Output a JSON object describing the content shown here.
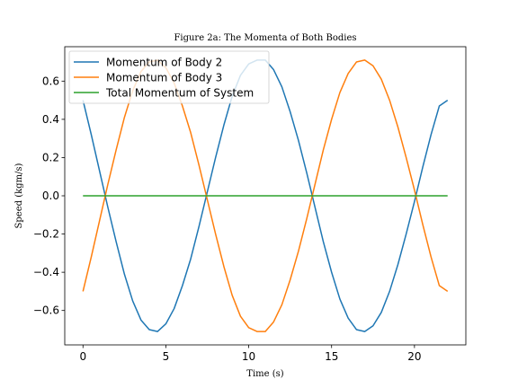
{
  "chart_data": {
    "type": "line",
    "title": "Figure 2a: The Momenta of Both Bodies",
    "xlabel": "Time (s)",
    "ylabel": "Speed (kgm/s)",
    "xlim": [
      -1.1,
      23.1
    ],
    "ylim": [
      -0.78,
      0.78
    ],
    "xticks": [
      0,
      5,
      10,
      15,
      20
    ],
    "yticks": [
      -0.6,
      -0.4,
      -0.2,
      0.0,
      0.2,
      0.4,
      0.6
    ],
    "ytick_labels": [
      "−0.6",
      "−0.4",
      "−0.2",
      "0.0",
      "0.2",
      "0.4",
      "0.6"
    ],
    "grid": false,
    "legend": "top-left",
    "x": [
      0,
      0.5,
      1,
      1.5,
      2,
      2.5,
      3,
      3.5,
      4,
      4.5,
      5,
      5.5,
      6,
      6.5,
      7,
      7.5,
      8,
      8.5,
      9,
      9.5,
      10,
      10.5,
      11,
      11.5,
      12,
      12.5,
      13,
      13.5,
      14,
      14.5,
      15,
      15.5,
      16,
      16.5,
      17,
      17.5,
      18,
      18.5,
      19,
      19.5,
      20,
      20.5,
      21,
      21.5,
      22
    ],
    "series": [
      {
        "name": "Momentum of Body 2",
        "color": "#1f77b4",
        "values": [
          0.5,
          0.32,
          0.13,
          -0.06,
          -0.24,
          -0.41,
          -0.55,
          -0.65,
          -0.7,
          -0.71,
          -0.67,
          -0.59,
          -0.47,
          -0.33,
          -0.16,
          0.02,
          0.2,
          0.37,
          0.52,
          0.63,
          0.69,
          0.71,
          0.71,
          0.66,
          0.57,
          0.44,
          0.29,
          0.12,
          -0.06,
          -0.24,
          -0.4,
          -0.54,
          -0.64,
          -0.7,
          -0.71,
          -0.68,
          -0.61,
          -0.5,
          -0.36,
          -0.2,
          -0.03,
          0.15,
          0.32,
          0.47,
          0.5
        ]
      },
      {
        "name": "Momentum of Body 3",
        "color": "#ff7f0e",
        "values": [
          -0.5,
          -0.32,
          -0.13,
          0.06,
          0.24,
          0.41,
          0.55,
          0.65,
          0.7,
          0.71,
          0.67,
          0.59,
          0.47,
          0.33,
          0.16,
          -0.02,
          -0.2,
          -0.37,
          -0.52,
          -0.63,
          -0.69,
          -0.71,
          -0.71,
          -0.66,
          -0.57,
          -0.44,
          -0.29,
          -0.12,
          0.06,
          0.24,
          0.4,
          0.54,
          0.64,
          0.7,
          0.71,
          0.68,
          0.61,
          0.5,
          0.36,
          0.2,
          0.03,
          -0.15,
          -0.32,
          -0.47,
          -0.5
        ]
      },
      {
        "name": "Total Momentum of System",
        "color": "#2ca02c",
        "values": [
          0,
          0,
          0,
          0,
          0,
          0,
          0,
          0,
          0,
          0,
          0,
          0,
          0,
          0,
          0,
          0,
          0,
          0,
          0,
          0,
          0,
          0,
          0,
          0,
          0,
          0,
          0,
          0,
          0,
          0,
          0,
          0,
          0,
          0,
          0,
          0,
          0,
          0,
          0,
          0,
          0,
          0,
          0,
          0,
          0
        ]
      }
    ]
  }
}
